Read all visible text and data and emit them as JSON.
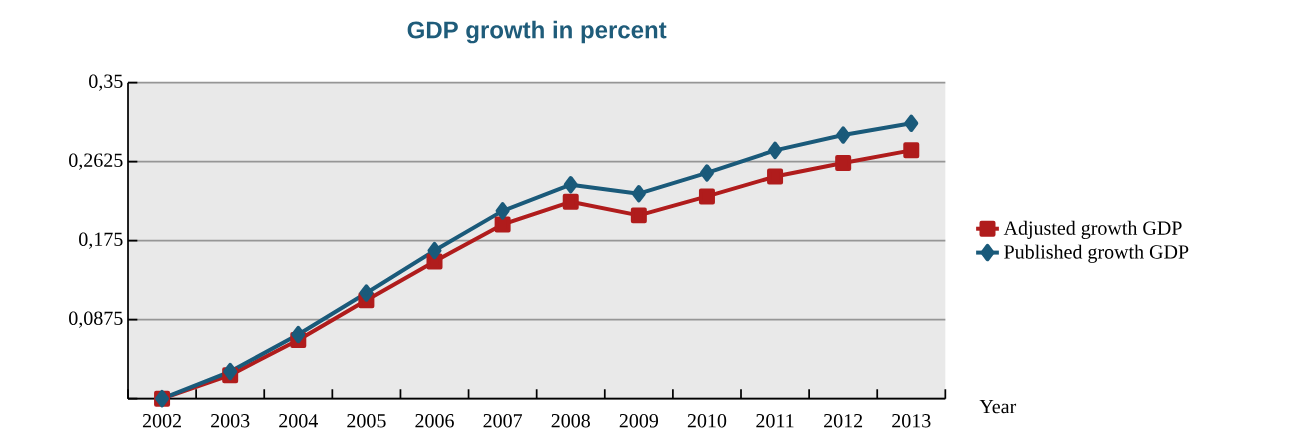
{
  "chart_data": {
    "type": "line",
    "title": "GDP growth in percent",
    "xlabel": "Year",
    "categories": [
      "2002",
      "2003",
      "2004",
      "2005",
      "2006",
      "2007",
      "2008",
      "2009",
      "2010",
      "2011",
      "2012",
      "2013"
    ],
    "series": [
      {
        "name": "Adjusted growth GDP",
        "color": "#b01c1c",
        "marker": "square",
        "values": [
          0,
          0.026,
          0.065,
          0.109,
          0.152,
          0.193,
          0.218,
          0.203,
          0.224,
          0.246,
          0.261,
          0.275
        ]
      },
      {
        "name": "Published growth GDP",
        "color": "#1a5a7a",
        "marker": "diamond",
        "values": [
          0,
          0.03,
          0.071,
          0.117,
          0.164,
          0.208,
          0.237,
          0.227,
          0.25,
          0.275,
          0.292,
          0.305
        ]
      }
    ],
    "ylim": [
      0,
      0.35
    ],
    "yticks": [
      {
        "value": 0,
        "label": null
      },
      {
        "value": 0.0875,
        "label": "0,0875"
      },
      {
        "value": 0.175,
        "label": "0,175"
      },
      {
        "value": 0.2625,
        "label": "0,2625"
      },
      {
        "value": 0.35,
        "label": "0,35"
      }
    ],
    "grid": "y",
    "legend": "right",
    "line_style": "solid"
  }
}
